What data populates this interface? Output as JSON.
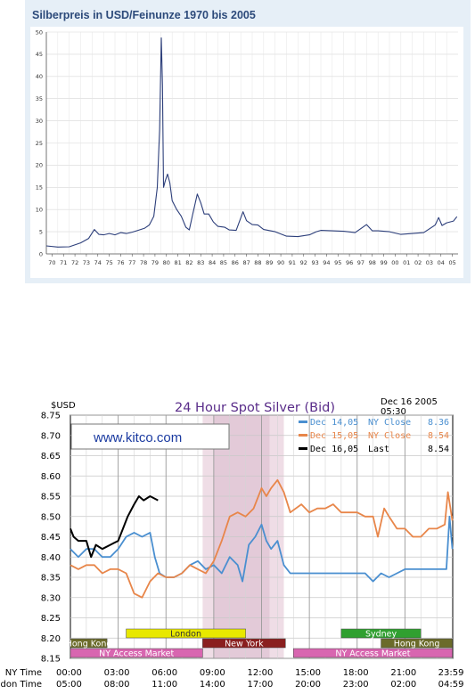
{
  "chart_data": [
    {
      "type": "line",
      "title": "Silberpreis in USD/Feinunze 1970 bis 2005",
      "ylim": [
        0,
        50
      ],
      "yticks": [
        0,
        5,
        10,
        15,
        20,
        25,
        30,
        35,
        40,
        45,
        50
      ],
      "xlim": [
        1970,
        2006
      ],
      "xtick_labels": [
        "70",
        "71",
        "72",
        "73",
        "74",
        "75",
        "76",
        "77",
        "78",
        "79",
        "80",
        "81",
        "82",
        "83",
        "84",
        "85",
        "86",
        "87",
        "88",
        "89",
        "90",
        "91",
        "92",
        "93",
        "94",
        "95",
        "96",
        "97",
        "98",
        "99",
        "00",
        "01",
        "02",
        "03",
        "04",
        "05"
      ],
      "grid": true,
      "series": [
        {
          "color": "#2c3e7a",
          "points": [
            [
              1970,
              1.8
            ],
            [
              1971,
              1.55
            ],
            [
              1972,
              1.6
            ],
            [
              1973,
              2.5
            ],
            [
              1973.7,
              3.5
            ],
            [
              1974.2,
              5.5
            ],
            [
              1974.6,
              4.4
            ],
            [
              1975,
              4.3
            ],
            [
              1975.5,
              4.6
            ],
            [
              1976,
              4.3
            ],
            [
              1976.5,
              4.8
            ],
            [
              1977,
              4.6
            ],
            [
              1977.5,
              4.9
            ],
            [
              1978,
              5.3
            ],
            [
              1978.6,
              5.8
            ],
            [
              1979,
              6.5
            ],
            [
              1979.4,
              8.5
            ],
            [
              1979.7,
              15
            ],
            [
              1979.9,
              28
            ],
            [
              1980.05,
              48.7
            ],
            [
              1980.15,
              38
            ],
            [
              1980.25,
              15
            ],
            [
              1980.4,
              16.5
            ],
            [
              1980.6,
              18
            ],
            [
              1980.8,
              16
            ],
            [
              1981,
              12
            ],
            [
              1981.4,
              10
            ],
            [
              1981.8,
              8.5
            ],
            [
              1982.2,
              6
            ],
            [
              1982.5,
              5.4
            ],
            [
              1982.8,
              9
            ],
            [
              1983.2,
              13.5
            ],
            [
              1983.5,
              11.5
            ],
            [
              1983.8,
              9
            ],
            [
              1984.2,
              9
            ],
            [
              1984.6,
              7.2
            ],
            [
              1985,
              6.2
            ],
            [
              1985.6,
              6
            ],
            [
              1986,
              5.4
            ],
            [
              1986.6,
              5.3
            ],
            [
              1987.2,
              9.5
            ],
            [
              1987.5,
              7.5
            ],
            [
              1988,
              6.6
            ],
            [
              1988.5,
              6.5
            ],
            [
              1989,
              5.5
            ],
            [
              1990,
              5
            ],
            [
              1991,
              4
            ],
            [
              1992,
              3.9
            ],
            [
              1993,
              4.3
            ],
            [
              1993.6,
              5
            ],
            [
              1994,
              5.3
            ],
            [
              1995,
              5.2
            ],
            [
              1996,
              5.1
            ],
            [
              1997,
              4.8
            ],
            [
              1998,
              6.6
            ],
            [
              1998.5,
              5.2
            ],
            [
              1999,
              5.2
            ],
            [
              2000,
              5
            ],
            [
              2001,
              4.4
            ],
            [
              2002,
              4.6
            ],
            [
              2003,
              4.8
            ],
            [
              2004,
              6.5
            ],
            [
              2004.3,
              8.2
            ],
            [
              2004.6,
              6.4
            ],
            [
              2005,
              7
            ],
            [
              2005.6,
              7.4
            ],
            [
              2005.9,
              8.4
            ]
          ]
        }
      ]
    },
    {
      "type": "line",
      "title": "24 Hour Spot Silver (Bid)",
      "ylabel": "$USD",
      "date_label": "Dec  16  2005",
      "time_label": "05:30",
      "watermark": "www.kitco.com",
      "ylim": [
        8.15,
        8.75
      ],
      "yticks": [
        "8.15",
        "8.20",
        "8.25",
        "8.30",
        "8.35",
        "8.40",
        "8.45",
        "8.50",
        "8.55",
        "8.60",
        "8.65",
        "8.70",
        "8.75"
      ],
      "xlim": [
        0,
        24
      ],
      "x_ny_label": "NY Time",
      "x_london_label": "London Time",
      "x_ny_ticks": [
        "00:00",
        "03:00",
        "06:00",
        "09:00",
        "12:00",
        "15:00",
        "18:00",
        "21:00",
        "23:59"
      ],
      "x_london_ticks": [
        "05:00",
        "08:00",
        "11:00",
        "14:00",
        "17:00",
        "20:00",
        "23:00",
        "02:00",
        "04:59"
      ],
      "grid": true,
      "legend_position": "top-right",
      "legend": [
        {
          "date": "Dec  14,05",
          "label": "NY  Close",
          "value": "8.36",
          "color": "#4a8fd0"
        },
        {
          "date": "Dec  15,05",
          "label": "NY  Close",
          "value": "8.54",
          "color": "#e8864a"
        },
        {
          "date": "Dec  16,05",
          "label": "Last",
          "value": "8.54",
          "color": "#000000"
        }
      ],
      "session_labels": [
        "Hong Kong",
        "NY Access Market",
        "London",
        "New York",
        "Sydney",
        "NY Access Market",
        "Hong Kong"
      ],
      "series": [
        {
          "name": "Dec  14,05",
          "color": "#4a8fd0",
          "points": [
            [
              0,
              8.42
            ],
            [
              0.5,
              8.4
            ],
            [
              1,
              8.42
            ],
            [
              1.5,
              8.42
            ],
            [
              2,
              8.4
            ],
            [
              2.5,
              8.4
            ],
            [
              3,
              8.42
            ],
            [
              3.5,
              8.45
            ],
            [
              4,
              8.46
            ],
            [
              4.5,
              8.45
            ],
            [
              5,
              8.46
            ],
            [
              5.3,
              8.4
            ],
            [
              5.6,
              8.36
            ],
            [
              6,
              8.35
            ],
            [
              6.5,
              8.35
            ],
            [
              7,
              8.36
            ],
            [
              7.5,
              8.38
            ],
            [
              8,
              8.39
            ],
            [
              8.5,
              8.37
            ],
            [
              9,
              8.38
            ],
            [
              9.5,
              8.36
            ],
            [
              10,
              8.4
            ],
            [
              10.5,
              8.38
            ],
            [
              10.8,
              8.34
            ],
            [
              11.2,
              8.43
            ],
            [
              11.6,
              8.45
            ],
            [
              12,
              8.48
            ],
            [
              12.3,
              8.44
            ],
            [
              12.6,
              8.42
            ],
            [
              13,
              8.44
            ],
            [
              13.4,
              8.38
            ],
            [
              13.8,
              8.36
            ],
            [
              14.5,
              8.36
            ],
            [
              15,
              8.36
            ],
            [
              16,
              8.36
            ],
            [
              17,
              8.36
            ],
            [
              18,
              8.36
            ],
            [
              18.5,
              8.36
            ],
            [
              19,
              8.34
            ],
            [
              19.5,
              8.36
            ],
            [
              20,
              8.35
            ],
            [
              20.5,
              8.36
            ],
            [
              21,
              8.37
            ],
            [
              21.5,
              8.37
            ],
            [
              22,
              8.37
            ],
            [
              22.5,
              8.37
            ],
            [
              23,
              8.37
            ],
            [
              23.6,
              8.37
            ],
            [
              23.8,
              8.5
            ],
            [
              23.98,
              8.42
            ]
          ]
        },
        {
          "name": "Dec  15,05",
          "color": "#e8864a",
          "points": [
            [
              0,
              8.38
            ],
            [
              0.5,
              8.37
            ],
            [
              1,
              8.38
            ],
            [
              1.5,
              8.38
            ],
            [
              2,
              8.36
            ],
            [
              2.5,
              8.37
            ],
            [
              3,
              8.37
            ],
            [
              3.5,
              8.36
            ],
            [
              4,
              8.31
            ],
            [
              4.5,
              8.3
            ],
            [
              5,
              8.34
            ],
            [
              5.5,
              8.36
            ],
            [
              6,
              8.35
            ],
            [
              6.5,
              8.35
            ],
            [
              7,
              8.36
            ],
            [
              7.5,
              8.38
            ],
            [
              8,
              8.37
            ],
            [
              8.5,
              8.36
            ],
            [
              9,
              8.39
            ],
            [
              9.5,
              8.44
            ],
            [
              10,
              8.5
            ],
            [
              10.5,
              8.51
            ],
            [
              11,
              8.5
            ],
            [
              11.5,
              8.52
            ],
            [
              12,
              8.57
            ],
            [
              12.3,
              8.55
            ],
            [
              12.6,
              8.57
            ],
            [
              13,
              8.59
            ],
            [
              13.4,
              8.56
            ],
            [
              13.8,
              8.51
            ],
            [
              14.5,
              8.53
            ],
            [
              15,
              8.51
            ],
            [
              15.5,
              8.52
            ],
            [
              16,
              8.52
            ],
            [
              16.5,
              8.53
            ],
            [
              17,
              8.51
            ],
            [
              17.5,
              8.51
            ],
            [
              18,
              8.51
            ],
            [
              18.5,
              8.5
            ],
            [
              19,
              8.5
            ],
            [
              19.3,
              8.45
            ],
            [
              19.7,
              8.52
            ],
            [
              20,
              8.5
            ],
            [
              20.5,
              8.47
            ],
            [
              21,
              8.47
            ],
            [
              21.5,
              8.45
            ],
            [
              22,
              8.45
            ],
            [
              22.5,
              8.47
            ],
            [
              23,
              8.47
            ],
            [
              23.5,
              8.48
            ],
            [
              23.7,
              8.56
            ],
            [
              23.98,
              8.49
            ]
          ]
        },
        {
          "name": "Dec  16,05",
          "color": "#000000",
          "points": [
            [
              0,
              8.47
            ],
            [
              0.2,
              8.45
            ],
            [
              0.5,
              8.44
            ],
            [
              1,
              8.44
            ],
            [
              1.3,
              8.4
            ],
            [
              1.6,
              8.43
            ],
            [
              2,
              8.42
            ],
            [
              2.5,
              8.43
            ],
            [
              3,
              8.44
            ],
            [
              3.3,
              8.47
            ],
            [
              3.6,
              8.5
            ],
            [
              4,
              8.53
            ],
            [
              4.3,
              8.55
            ],
            [
              4.6,
              8.54
            ],
            [
              5,
              8.55
            ],
            [
              5.5,
              8.54
            ]
          ]
        }
      ]
    }
  ]
}
